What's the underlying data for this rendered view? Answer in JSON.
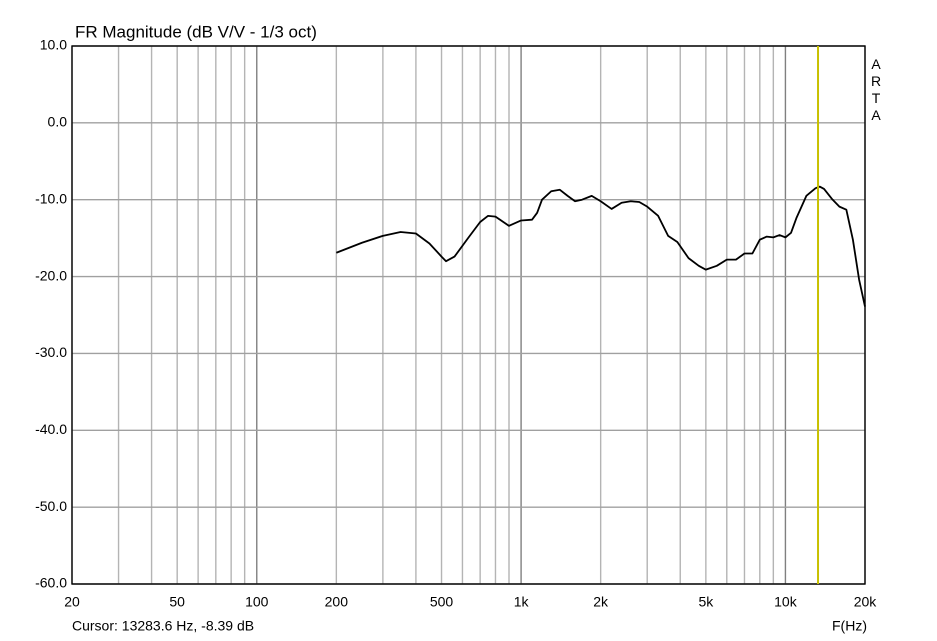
{
  "chart_data": {
    "type": "line",
    "title": "FR Magnitude (dB V/V - 1/3 oct)",
    "x_label": "F(Hz)",
    "side_label": "ARTA",
    "cursor_label": "Cursor: 13283.6 Hz, -8.39 dB",
    "cursor_x": 13283.6,
    "cursor_color": "#c8c000",
    "xscale": "log",
    "grid": true,
    "xlim": [
      20,
      20000
    ],
    "ylim": [
      -60,
      10
    ],
    "xticks": [
      20,
      50,
      100,
      200,
      500,
      {
        "value": 1000,
        "label": "1k"
      },
      {
        "value": 2000,
        "label": "2k"
      },
      {
        "value": 5000,
        "label": "5k"
      },
      {
        "value": 10000,
        "label": "10k"
      },
      {
        "value": 20000,
        "label": "20k"
      }
    ],
    "x_gridlines": [
      20,
      30,
      40,
      50,
      60,
      70,
      80,
      90,
      100,
      200,
      300,
      400,
      500,
      600,
      700,
      800,
      900,
      1000,
      2000,
      3000,
      4000,
      5000,
      6000,
      7000,
      8000,
      9000,
      10000,
      20000
    ],
    "yticks": [
      {
        "value": 10,
        "label": "10.0"
      },
      {
        "value": 0,
        "label": "0.0"
      },
      {
        "value": -10,
        "label": "-10.0"
      },
      {
        "value": -20,
        "label": "-20.0"
      },
      {
        "value": -30,
        "label": "-30.0"
      },
      {
        "value": -40,
        "label": "-40.0"
      },
      {
        "value": -50,
        "label": "-50.0"
      },
      {
        "value": -60,
        "label": "-60.0"
      }
    ],
    "x": [
      200,
      250,
      300,
      350,
      400,
      450,
      500,
      520,
      560,
      630,
      700,
      750,
      800,
      900,
      1000,
      1100,
      1150,
      1200,
      1300,
      1400,
      1500,
      1600,
      1700,
      1850,
      2000,
      2200,
      2400,
      2600,
      2800,
      3000,
      3300,
      3600,
      3900,
      4300,
      4700,
      5000,
      5500,
      6000,
      6500,
      7000,
      7500,
      8000,
      8500,
      9000,
      9500,
      10000,
      10500,
      11000,
      12000,
      13000,
      13500,
      14000,
      15000,
      16000,
      17000,
      18000,
      19000,
      20000
    ],
    "series": [
      {
        "color": "#000000",
        "values": [
          -16.9,
          -15.6,
          -14.7,
          -14.2,
          -14.4,
          -15.7,
          -17.4,
          -18.0,
          -17.4,
          -15.0,
          -12.9,
          -12.1,
          -12.2,
          -13.4,
          -12.7,
          -12.6,
          -11.7,
          -10.0,
          -8.9,
          -8.7,
          -9.5,
          -10.2,
          -10.0,
          -9.5,
          -10.2,
          -11.2,
          -10.4,
          -10.2,
          -10.3,
          -10.9,
          -12.1,
          -14.7,
          -15.5,
          -17.6,
          -18.6,
          -19.1,
          -18.6,
          -17.8,
          -17.8,
          -17.0,
          -17.0,
          -15.2,
          -14.8,
          -14.9,
          -14.6,
          -14.9,
          -14.3,
          -12.4,
          -9.5,
          -8.5,
          -8.3,
          -8.6,
          -9.9,
          -10.9,
          -11.3,
          -15.2,
          -20.4,
          -23.9
        ]
      }
    ]
  }
}
